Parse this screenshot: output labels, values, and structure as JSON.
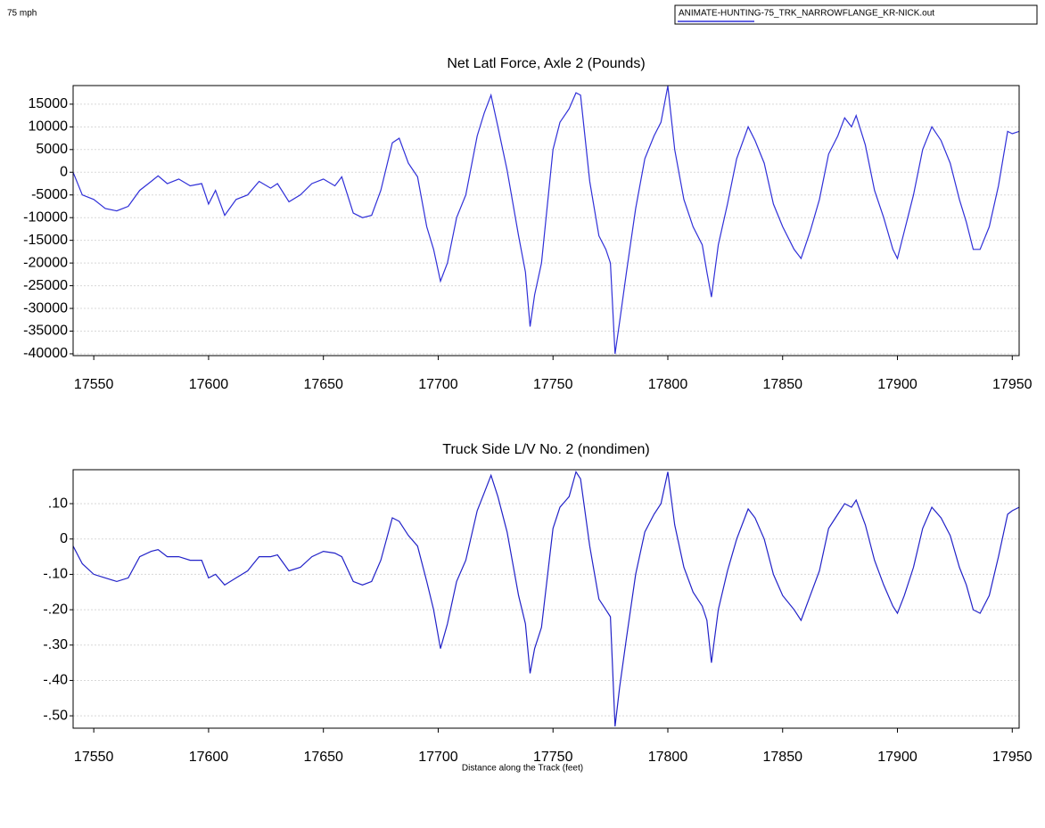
{
  "speed_note": "75 mph",
  "chart_data": [
    {
      "type": "line",
      "title": "Net Latl Force, Axle 2 (Pounds)",
      "x": [
        17541,
        17545,
        17550,
        17555,
        17560,
        17565,
        17570,
        17575,
        17578,
        17582,
        17587,
        17592,
        17597,
        17600,
        17603,
        17607,
        17612,
        17617,
        17622,
        17627,
        17630,
        17635,
        17640,
        17645,
        17650,
        17655,
        17658,
        17663,
        17667,
        17671,
        17675,
        17680,
        17683,
        17687,
        17691,
        17695,
        17698,
        17701,
        17704,
        17708,
        17712,
        17717,
        17720,
        17723,
        17726,
        17730,
        17735,
        17738,
        17740,
        17742,
        17745,
        17750,
        17753,
        17757,
        17760,
        17762,
        17766,
        17770,
        17773,
        17775,
        17777,
        17779,
        17782,
        17786,
        17790,
        17794,
        17797,
        17800,
        17803,
        17807,
        17811,
        17815,
        17817,
        17819,
        17822,
        17826,
        17830,
        17835,
        17838,
        17842,
        17846,
        17850,
        17855,
        17858,
        17862,
        17866,
        17870,
        17874,
        17877,
        17880,
        17882,
        17886,
        17890,
        17894,
        17898,
        17900,
        17903,
        17907,
        17911,
        17915,
        17919,
        17923,
        17927,
        17930,
        17933,
        17936,
        17940,
        17944,
        17948,
        17950,
        17953
      ],
      "series": [
        {
          "name": "ANIMATE-HUNTING-75_TRK_NARROWFLANGE_KR-NICK.out",
          "color": "#3030d8",
          "values": [
            0,
            -5000,
            -6000,
            -8000,
            -8500,
            -7500,
            -4000,
            -2000,
            -800,
            -2500,
            -1500,
            -3000,
            -2500,
            -7000,
            -4000,
            -9500,
            -6000,
            -5000,
            -2000,
            -3500,
            -2500,
            -6500,
            -5000,
            -2500,
            -1500,
            -3000,
            -1000,
            -9000,
            -10000,
            -9500,
            -4000,
            6500,
            7500,
            2000,
            -1000,
            -12000,
            -17000,
            -24000,
            -20000,
            -10000,
            -5000,
            8000,
            13000,
            17000,
            10000,
            500,
            -14000,
            -22000,
            -34000,
            -27000,
            -20000,
            5000,
            11000,
            14000,
            17500,
            17000,
            -2000,
            -14000,
            -17000,
            -20000,
            -40000,
            -33000,
            -22000,
            -8000,
            3000,
            8000,
            11000,
            19000,
            5000,
            -6000,
            -12000,
            -16000,
            -22000,
            -27500,
            -16000,
            -7000,
            3000,
            10000,
            7000,
            2000,
            -7000,
            -12000,
            -17000,
            -19000,
            -13000,
            -6000,
            4000,
            8000,
            12000,
            10000,
            12500,
            6000,
            -4000,
            -10000,
            -17000,
            -19000,
            -13000,
            -5000,
            5000,
            10000,
            7000,
            2000,
            -6000,
            -11000,
            -17000,
            -17000,
            -12000,
            -3000,
            9000,
            8500,
            9000
          ]
        }
      ],
      "xlim": [
        17541,
        17953
      ],
      "xticks": [
        17550,
        17600,
        17650,
        17700,
        17750,
        17800,
        17850,
        17900,
        17950
      ],
      "ylim": [
        -40400,
        19100
      ],
      "yticks": [
        15000,
        10000,
        5000,
        0,
        -5000,
        -10000,
        -15000,
        -20000,
        -25000,
        -30000,
        -35000,
        -40000
      ],
      "grid": true
    },
    {
      "type": "line",
      "title": "Truck Side L/V No. 2 (nondimen)",
      "xlabel": "Distance along the Track (feet)",
      "x": [
        17541,
        17545,
        17550,
        17555,
        17560,
        17565,
        17570,
        17575,
        17578,
        17582,
        17587,
        17592,
        17597,
        17600,
        17603,
        17607,
        17612,
        17617,
        17622,
        17627,
        17630,
        17635,
        17640,
        17645,
        17650,
        17655,
        17658,
        17663,
        17667,
        17671,
        17675,
        17680,
        17683,
        17687,
        17691,
        17695,
        17698,
        17701,
        17704,
        17708,
        17712,
        17717,
        17720,
        17723,
        17726,
        17730,
        17735,
        17738,
        17740,
        17742,
        17745,
        17750,
        17753,
        17757,
        17760,
        17762,
        17766,
        17770,
        17773,
        17775,
        17777,
        17779,
        17782,
        17786,
        17790,
        17794,
        17797,
        17800,
        17803,
        17807,
        17811,
        17815,
        17817,
        17819,
        17822,
        17826,
        17830,
        17835,
        17838,
        17842,
        17846,
        17850,
        17855,
        17858,
        17862,
        17866,
        17870,
        17874,
        17877,
        17880,
        17882,
        17886,
        17890,
        17894,
        17898,
        17900,
        17903,
        17907,
        17911,
        17915,
        17919,
        17923,
        17927,
        17930,
        17933,
        17936,
        17940,
        17944,
        17948,
        17950,
        17953
      ],
      "series": [
        {
          "color": "#2222c8",
          "values": [
            -0.02,
            -0.07,
            -0.1,
            -0.11,
            -0.12,
            -0.11,
            -0.05,
            -0.035,
            -0.03,
            -0.05,
            -0.05,
            -0.06,
            -0.06,
            -0.11,
            -0.1,
            -0.13,
            -0.11,
            -0.09,
            -0.05,
            -0.05,
            -0.045,
            -0.09,
            -0.08,
            -0.05,
            -0.035,
            -0.04,
            -0.05,
            -0.12,
            -0.13,
            -0.12,
            -0.06,
            0.06,
            0.05,
            0.01,
            -0.02,
            -0.12,
            -0.2,
            -0.31,
            -0.24,
            -0.12,
            -0.06,
            0.08,
            0.13,
            0.18,
            0.12,
            0.02,
            -0.16,
            -0.24,
            -0.38,
            -0.31,
            -0.25,
            0.03,
            0.09,
            0.12,
            0.19,
            0.17,
            -0.02,
            -0.17,
            -0.2,
            -0.22,
            -0.53,
            -0.42,
            -0.28,
            -0.1,
            0.02,
            0.07,
            0.1,
            0.19,
            0.04,
            -0.08,
            -0.15,
            -0.19,
            -0.23,
            -0.35,
            -0.2,
            -0.09,
            0,
            0.085,
            0.06,
            0,
            -0.1,
            -0.16,
            -0.2,
            -0.23,
            -0.16,
            -0.09,
            0.03,
            0.07,
            0.1,
            0.09,
            0.11,
            0.04,
            -0.06,
            -0.13,
            -0.19,
            -0.21,
            -0.16,
            -0.08,
            0.03,
            0.09,
            0.06,
            0.01,
            -0.08,
            -0.13,
            -0.2,
            -0.21,
            -0.16,
            -0.05,
            0.07,
            0.08,
            0.09
          ]
        }
      ],
      "xlim": [
        17541,
        17953
      ],
      "xticks": [
        17550,
        17600,
        17650,
        17700,
        17750,
        17800,
        17850,
        17900,
        17950
      ],
      "ylim": [
        -0.535,
        0.196
      ],
      "yticks": [
        {
          "value": 0.1,
          "label": ".10"
        },
        0,
        {
          "value": -0.1,
          "label": "-.10"
        },
        {
          "value": -0.2,
          "label": "-.20"
        },
        {
          "value": -0.3,
          "label": "-.30"
        },
        {
          "value": -0.4,
          "label": "-.40"
        },
        {
          "value": -0.5,
          "label": "-.50"
        }
      ],
      "grid": true
    }
  ]
}
